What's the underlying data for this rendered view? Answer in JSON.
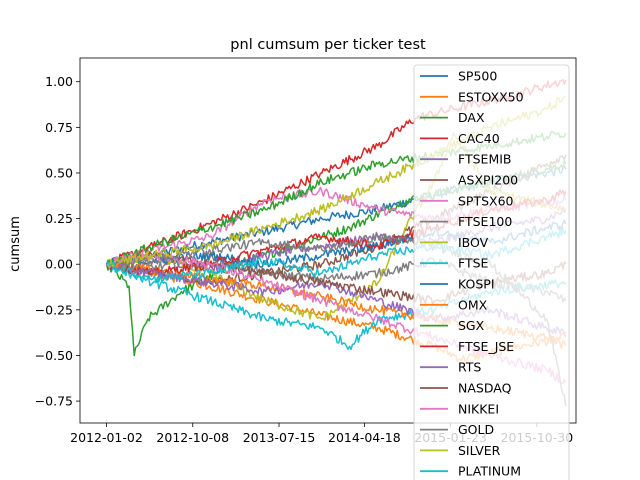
{
  "chart_data": {
    "type": "line",
    "title": "pnl cumsum per ticker test",
    "xlabel": "",
    "ylabel": "cumsum",
    "xlim": [
      "2011-10-08",
      "2016-03-05"
    ],
    "ylim": [
      -0.87,
      1.13
    ],
    "x_ticks": [
      "2012-01-02",
      "2012-10-08",
      "2013-07-15",
      "2014-04-18",
      "2015-01-23",
      "2015-10-30"
    ],
    "y_ticks": [
      -0.75,
      -0.5,
      -0.25,
      0.0,
      0.25,
      0.5,
      0.75,
      1.0
    ],
    "y_tick_labels": [
      "−0.75",
      "−0.50",
      "−0.25",
      "0.00",
      "0.25",
      "0.50",
      "0.75",
      "1.00"
    ],
    "x_start": "2012-01-02",
    "x_end": "2016-02-01",
    "grid": false,
    "legend_position": "right",
    "series": [
      {
        "name": "SP500",
        "color": "#1f77b4",
        "points": [
          [
            "2012-01-02",
            0.0
          ],
          [
            "2012-06-01",
            0.05
          ],
          [
            "2012-12-01",
            0.12
          ],
          [
            "2013-06-01",
            0.18
          ],
          [
            "2013-12-01",
            0.25
          ],
          [
            "2014-06-01",
            0.3
          ],
          [
            "2014-12-01",
            0.38
          ],
          [
            "2015-06-01",
            0.45
          ],
          [
            "2015-12-01",
            0.5
          ],
          [
            "2016-02-01",
            0.52
          ]
        ]
      },
      {
        "name": "ESTOXX50",
        "color": "#ff7f0e",
        "points": [
          [
            "2012-01-02",
            0.0
          ],
          [
            "2012-06-01",
            -0.05
          ],
          [
            "2012-12-01",
            -0.12
          ],
          [
            "2013-06-01",
            -0.2
          ],
          [
            "2013-12-01",
            -0.28
          ],
          [
            "2014-06-01",
            -0.35
          ],
          [
            "2014-12-01",
            -0.45
          ],
          [
            "2015-03-01",
            -0.52
          ],
          [
            "2015-09-01",
            -0.45
          ],
          [
            "2016-02-01",
            -0.4
          ]
        ]
      },
      {
        "name": "DAX",
        "color": "#2ca02c",
        "points": [
          [
            "2012-01-02",
            0.0
          ],
          [
            "2012-03-15",
            -0.12
          ],
          [
            "2012-04-01",
            -0.5
          ],
          [
            "2012-05-15",
            -0.3
          ],
          [
            "2012-09-01",
            -0.15
          ],
          [
            "2013-03-01",
            0.0
          ],
          [
            "2013-09-01",
            0.1
          ],
          [
            "2014-03-01",
            0.2
          ],
          [
            "2014-09-01",
            0.35
          ],
          [
            "2015-06-01",
            0.45
          ],
          [
            "2016-02-01",
            0.55
          ]
        ]
      },
      {
        "name": "CAC40",
        "color": "#d62728",
        "points": [
          [
            "2012-01-02",
            0.0
          ],
          [
            "2012-06-01",
            0.1
          ],
          [
            "2012-12-01",
            0.22
          ],
          [
            "2013-06-01",
            0.35
          ],
          [
            "2013-12-01",
            0.5
          ],
          [
            "2014-06-01",
            0.65
          ],
          [
            "2014-10-01",
            0.8
          ],
          [
            "2015-02-01",
            0.85
          ],
          [
            "2015-08-01",
            0.92
          ],
          [
            "2016-02-01",
            1.01
          ]
        ]
      },
      {
        "name": "FTSEMIB",
        "color": "#9467bd",
        "points": [
          [
            "2012-01-02",
            0.0
          ],
          [
            "2012-06-01",
            0.03
          ],
          [
            "2012-12-01",
            -0.02
          ],
          [
            "2013-06-01",
            0.05
          ],
          [
            "2013-12-01",
            0.1
          ],
          [
            "2014-06-01",
            0.15
          ],
          [
            "2014-12-01",
            0.12
          ],
          [
            "2015-06-01",
            0.2
          ],
          [
            "2015-12-01",
            0.25
          ],
          [
            "2016-02-01",
            0.3
          ]
        ]
      },
      {
        "name": "ASXPI200",
        "color": "#8c564b",
        "points": [
          [
            "2012-01-02",
            0.0
          ],
          [
            "2012-06-01",
            -0.04
          ],
          [
            "2012-12-01",
            -0.1
          ],
          [
            "2013-06-01",
            -0.05
          ],
          [
            "2013-12-01",
            0.0
          ],
          [
            "2014-06-01",
            0.1
          ],
          [
            "2014-12-01",
            0.25
          ],
          [
            "2015-06-01",
            0.4
          ],
          [
            "2015-12-01",
            0.55
          ],
          [
            "2016-02-01",
            0.6
          ]
        ]
      },
      {
        "name": "SPTSX60",
        "color": "#e377c2",
        "points": [
          [
            "2012-01-02",
            0.0
          ],
          [
            "2012-06-01",
            0.08
          ],
          [
            "2012-12-01",
            0.15
          ],
          [
            "2013-03-01",
            0.25
          ],
          [
            "2013-06-01",
            0.35
          ],
          [
            "2013-12-01",
            0.4
          ],
          [
            "2014-06-01",
            0.3
          ],
          [
            "2014-12-01",
            0.25
          ],
          [
            "2015-06-01",
            0.3
          ],
          [
            "2016-02-01",
            0.35
          ]
        ]
      },
      {
        "name": "FTSE100",
        "color": "#7f7f7f",
        "points": [
          [
            "2012-01-02",
            0.0
          ],
          [
            "2012-06-01",
            -0.02
          ],
          [
            "2012-12-01",
            0.03
          ],
          [
            "2013-06-01",
            -0.05
          ],
          [
            "2013-12-01",
            -0.08
          ],
          [
            "2014-06-01",
            -0.05
          ],
          [
            "2014-12-01",
            0.02
          ],
          [
            "2015-06-01",
            -0.1
          ],
          [
            "2015-12-01",
            -0.15
          ],
          [
            "2016-02-01",
            -0.2
          ]
        ]
      },
      {
        "name": "IBOV",
        "color": "#bcbd22",
        "points": [
          [
            "2012-01-02",
            0.0
          ],
          [
            "2012-06-01",
            0.05
          ],
          [
            "2012-12-01",
            -0.05
          ],
          [
            "2013-06-01",
            -0.2
          ],
          [
            "2013-12-01",
            -0.3
          ],
          [
            "2014-06-01",
            -0.1
          ],
          [
            "2014-09-01",
            0.2
          ],
          [
            "2014-12-01",
            0.45
          ],
          [
            "2015-02-01",
            0.72
          ],
          [
            "2015-06-01",
            0.4
          ],
          [
            "2016-02-01",
            0.3
          ]
        ]
      },
      {
        "name": "FTSE",
        "color": "#17becf",
        "points": [
          [
            "2012-01-02",
            0.0
          ],
          [
            "2012-06-01",
            -0.1
          ],
          [
            "2012-12-01",
            -0.2
          ],
          [
            "2013-06-01",
            -0.3
          ],
          [
            "2013-12-01",
            -0.35
          ],
          [
            "2014-03-01",
            -0.45
          ],
          [
            "2014-06-01",
            -0.3
          ],
          [
            "2014-12-01",
            -0.25
          ],
          [
            "2015-06-01",
            -0.15
          ],
          [
            "2016-02-01",
            -0.1
          ]
        ]
      },
      {
        "name": "KOSPI",
        "color": "#1f77b4",
        "points": [
          [
            "2012-01-02",
            0.0
          ],
          [
            "2012-06-01",
            0.02
          ],
          [
            "2012-12-01",
            0.05
          ],
          [
            "2013-06-01",
            0.0
          ],
          [
            "2013-12-01",
            0.05
          ],
          [
            "2014-06-01",
            0.1
          ],
          [
            "2014-12-01",
            0.18
          ],
          [
            "2015-06-01",
            0.12
          ],
          [
            "2015-12-01",
            0.2
          ],
          [
            "2016-02-01",
            0.22
          ]
        ]
      },
      {
        "name": "OMX",
        "color": "#ff7f0e",
        "points": [
          [
            "2012-01-02",
            0.0
          ],
          [
            "2012-06-01",
            -0.03
          ],
          [
            "2012-12-01",
            -0.08
          ],
          [
            "2013-06-01",
            -0.12
          ],
          [
            "2013-12-01",
            -0.18
          ],
          [
            "2014-06-01",
            -0.25
          ],
          [
            "2014-12-01",
            -0.3
          ],
          [
            "2015-06-01",
            -0.35
          ],
          [
            "2015-12-01",
            -0.4
          ],
          [
            "2016-02-01",
            -0.45
          ]
        ]
      },
      {
        "name": "SGX",
        "color": "#2ca02c",
        "points": [
          [
            "2012-01-02",
            0.0
          ],
          [
            "2012-06-01",
            0.1
          ],
          [
            "2012-12-01",
            0.2
          ],
          [
            "2013-06-01",
            0.3
          ],
          [
            "2013-12-01",
            0.45
          ],
          [
            "2014-06-01",
            0.55
          ],
          [
            "2014-12-01",
            0.6
          ],
          [
            "2015-06-01",
            0.65
          ],
          [
            "2015-12-01",
            0.7
          ],
          [
            "2016-02-01",
            0.72
          ]
        ]
      },
      {
        "name": "FTSE_JSE",
        "color": "#d62728",
        "points": [
          [
            "2012-01-02",
            0.0
          ],
          [
            "2012-06-01",
            -0.05
          ],
          [
            "2012-12-01",
            0.0
          ],
          [
            "2013-06-01",
            0.08
          ],
          [
            "2013-12-01",
            0.15
          ],
          [
            "2014-06-01",
            0.1
          ],
          [
            "2014-12-01",
            0.2
          ],
          [
            "2015-06-01",
            0.3
          ],
          [
            "2015-12-01",
            0.35
          ],
          [
            "2016-02-01",
            0.4
          ]
        ]
      },
      {
        "name": "RTS",
        "color": "#9467bd",
        "points": [
          [
            "2012-01-02",
            0.0
          ],
          [
            "2012-06-01",
            -0.05
          ],
          [
            "2012-12-01",
            -0.1
          ],
          [
            "2013-06-01",
            -0.15
          ],
          [
            "2013-12-01",
            -0.1
          ],
          [
            "2014-06-01",
            -0.2
          ],
          [
            "2014-12-01",
            -0.3
          ],
          [
            "2015-06-01",
            -0.25
          ],
          [
            "2015-12-01",
            -0.35
          ],
          [
            "2016-02-01",
            -0.38
          ]
        ]
      },
      {
        "name": "NASDAQ",
        "color": "#8c564b",
        "points": [
          [
            "2012-01-02",
            0.0
          ],
          [
            "2012-06-01",
            0.05
          ],
          [
            "2012-12-01",
            0.0
          ],
          [
            "2013-06-01",
            -0.05
          ],
          [
            "2013-12-01",
            -0.1
          ],
          [
            "2014-06-01",
            -0.15
          ],
          [
            "2014-12-01",
            -0.2
          ],
          [
            "2015-06-01",
            -0.1
          ],
          [
            "2015-12-01",
            -0.05
          ],
          [
            "2016-02-01",
            0.0
          ]
        ]
      },
      {
        "name": "NIKKEI",
        "color": "#e377c2",
        "points": [
          [
            "2012-01-02",
            0.0
          ],
          [
            "2012-06-01",
            0.05
          ],
          [
            "2012-12-01",
            0.0
          ],
          [
            "2013-06-01",
            -0.1
          ],
          [
            "2013-12-01",
            -0.2
          ],
          [
            "2014-06-01",
            -0.3
          ],
          [
            "2014-12-01",
            -0.4
          ],
          [
            "2015-06-01",
            -0.5
          ],
          [
            "2015-12-01",
            -0.58
          ],
          [
            "2016-02-01",
            -0.65
          ]
        ]
      },
      {
        "name": "GOLD",
        "color": "#7f7f7f",
        "points": [
          [
            "2012-01-02",
            0.0
          ],
          [
            "2012-06-01",
            0.02
          ],
          [
            "2012-12-01",
            0.08
          ],
          [
            "2013-06-01",
            0.12
          ],
          [
            "2013-12-01",
            0.08
          ],
          [
            "2014-06-01",
            0.15
          ],
          [
            "2014-12-01",
            0.1
          ],
          [
            "2015-06-01",
            0.0
          ],
          [
            "2015-12-01",
            -0.3
          ],
          [
            "2016-02-01",
            -0.78
          ]
        ]
      },
      {
        "name": "SILVER",
        "color": "#bcbd22",
        "points": [
          [
            "2012-01-02",
            0.0
          ],
          [
            "2012-06-01",
            0.05
          ],
          [
            "2012-12-01",
            0.1
          ],
          [
            "2013-06-01",
            0.2
          ],
          [
            "2013-12-01",
            0.3
          ],
          [
            "2014-06-01",
            0.45
          ],
          [
            "2014-12-01",
            0.6
          ],
          [
            "2015-06-01",
            0.75
          ],
          [
            "2015-12-01",
            0.85
          ],
          [
            "2016-02-01",
            0.92
          ]
        ]
      },
      {
        "name": "PLATINUM",
        "color": "#17becf",
        "points": [
          [
            "2012-01-02",
            0.0
          ],
          [
            "2012-06-01",
            -0.08
          ],
          [
            "2012-12-01",
            -0.05
          ],
          [
            "2013-06-01",
            0.02
          ],
          [
            "2013-12-01",
            -0.05
          ],
          [
            "2014-06-01",
            0.05
          ],
          [
            "2014-12-01",
            0.1
          ],
          [
            "2015-06-01",
            0.05
          ],
          [
            "2015-12-01",
            0.15
          ],
          [
            "2016-02-01",
            0.18
          ]
        ]
      }
    ]
  }
}
